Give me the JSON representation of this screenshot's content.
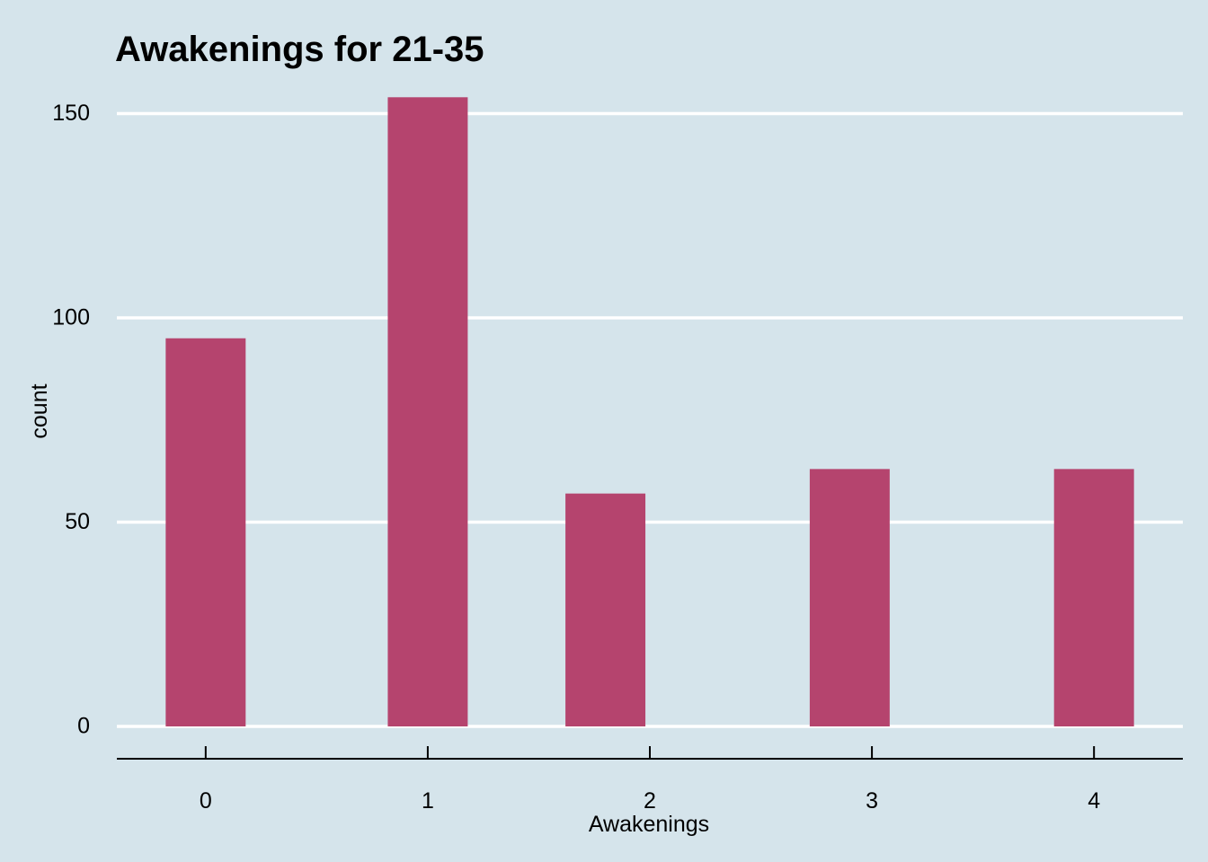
{
  "chart_data": {
    "type": "bar",
    "title": "Awakenings for 21-35",
    "xlabel": "Awakenings",
    "ylabel": "count",
    "x_ticks": [
      "0",
      "1",
      "2",
      "3",
      "4"
    ],
    "y_ticks": [
      0,
      50,
      100,
      150
    ],
    "xlim": [
      -0.4,
      4.4
    ],
    "ylim": [
      0,
      160
    ],
    "bars": [
      {
        "x": 0.0,
        "value": 95
      },
      {
        "x": 1.0,
        "value": 154
      },
      {
        "x": 1.8,
        "value": 57
      },
      {
        "x": 2.9,
        "value": 63
      },
      {
        "x": 4.0,
        "value": 63
      }
    ],
    "bar_width": 0.36,
    "grid": "horizontal",
    "bar_color": "#b5446e"
  }
}
